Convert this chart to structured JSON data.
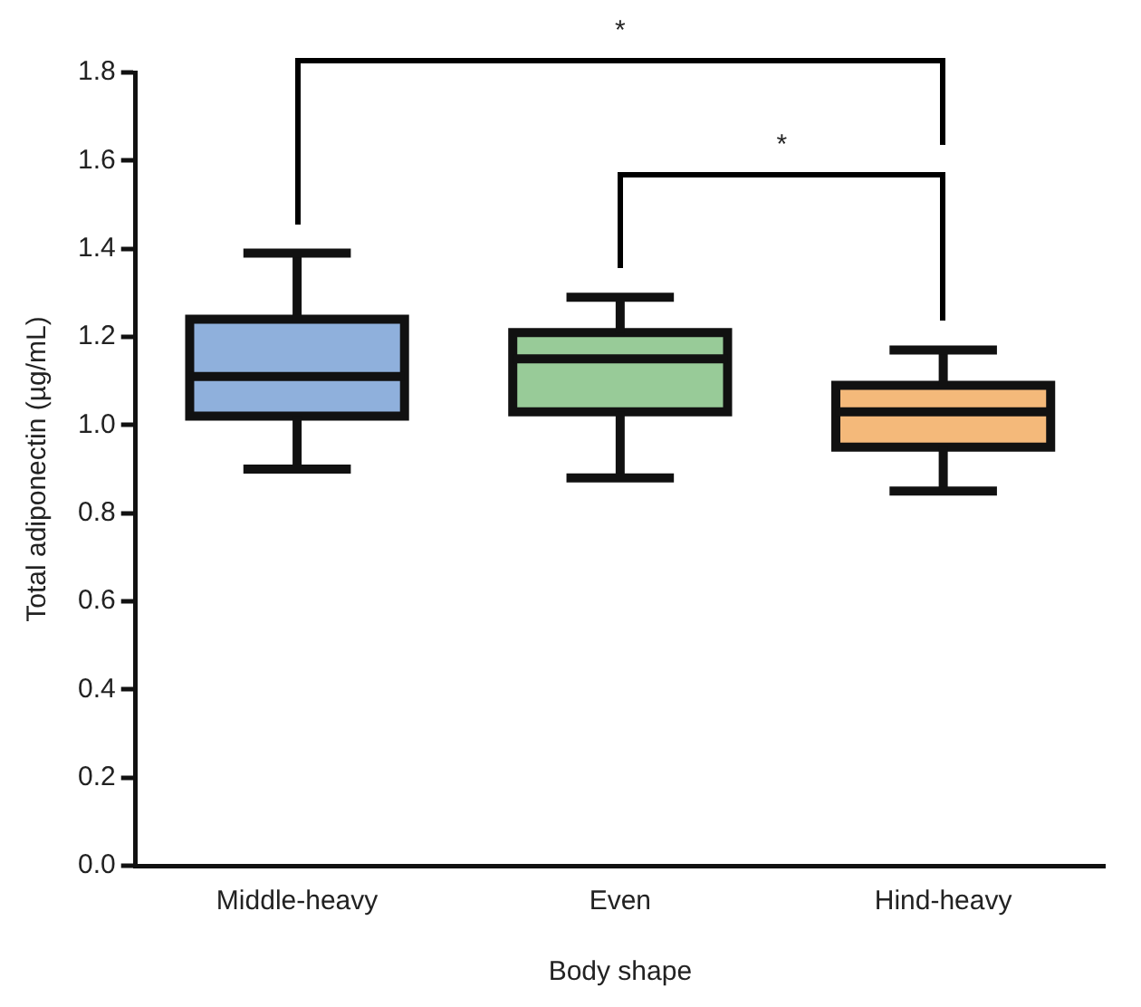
{
  "chart_data": {
    "type": "box",
    "xlabel": "Body shape",
    "ylabel": "Total adiponectin (µg/mL)",
    "categories": [
      "Middle-heavy",
      "Even",
      "Hind-heavy"
    ],
    "colors": [
      "#8fb0dc",
      "#98cb98",
      "#f4b97a"
    ],
    "boxes": [
      {
        "low": 0.9,
        "q1": 1.02,
        "median": 1.11,
        "q3": 1.24,
        "high": 1.39
      },
      {
        "low": 0.88,
        "q1": 1.03,
        "median": 1.15,
        "q3": 1.21,
        "high": 1.29
      },
      {
        "low": 0.85,
        "q1": 0.95,
        "median": 1.03,
        "q3": 1.09,
        "high": 1.17
      }
    ],
    "ylim": [
      0,
      1.8
    ],
    "yticks": [
      {
        "value": 0,
        "label": "0.0"
      },
      0.2,
      0.4,
      0.6,
      0.8,
      {
        "value": 1,
        "label": "1.0"
      },
      1.2,
      1.4,
      1.6,
      1.8
    ],
    "grid": false,
    "legend": false,
    "annotations": [
      "*",
      "*"
    ]
  }
}
